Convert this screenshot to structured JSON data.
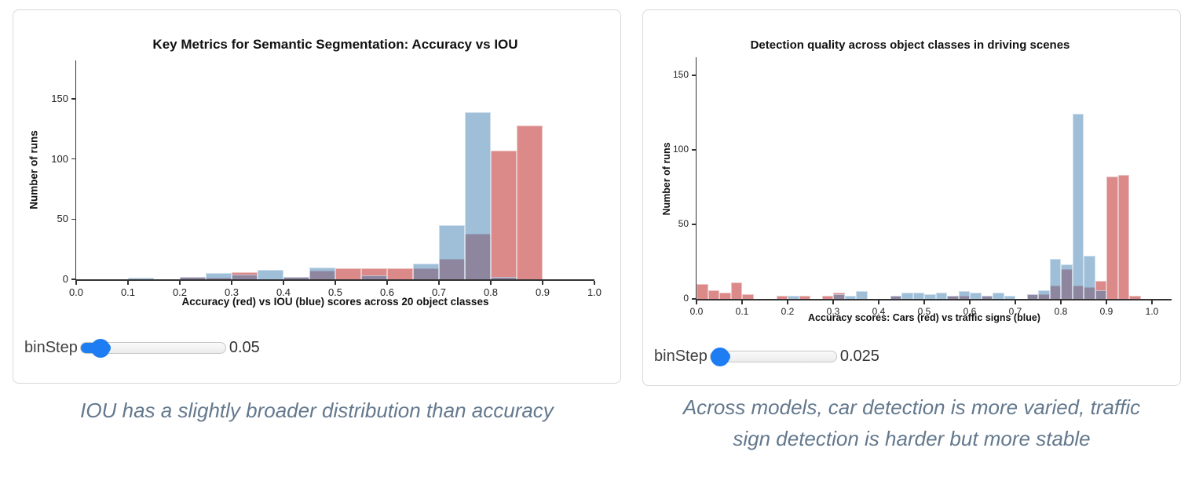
{
  "colors": {
    "red_bar": "rgba(205,92,92,0.72)",
    "blue_bar": "rgba(70,130,180,0.52)",
    "axis": "#333333",
    "tick_text": "#222222",
    "title_text": "#111111",
    "caption_text": "#63788d",
    "slider_accent": "#1e7df2",
    "panel_border": "#d8d8d8"
  },
  "chart_data": [
    {
      "type": "histogram",
      "title": "Key Metrics for Semantic Segmentation: Accuracy vs IOU",
      "xlabel": "Accuracy (red) vs IOU (blue) scores across 20 object classes",
      "ylabel": "Number of runs",
      "xticks": [
        "0.0",
        "0.1",
        "0.2",
        "0.3",
        "0.4",
        "0.5",
        "0.6",
        "0.7",
        "0.8",
        "0.9",
        "1.0"
      ],
      "yticks": [
        0,
        50,
        100,
        150
      ],
      "xlim": [
        0,
        1.0
      ],
      "ylim": [
        0,
        182
      ],
      "bin_step": 0.05,
      "grid": false,
      "series": [
        {
          "name": "Accuracy (red)",
          "color_key": "red_bar",
          "bins": [
            [
              0.2,
              2
            ],
            [
              0.25,
              1
            ],
            [
              0.3,
              6
            ],
            [
              0.4,
              2
            ],
            [
              0.45,
              7
            ],
            [
              0.5,
              9
            ],
            [
              0.55,
              9
            ],
            [
              0.6,
              9
            ],
            [
              0.65,
              9
            ],
            [
              0.7,
              17
            ],
            [
              0.75,
              38
            ],
            [
              0.8,
              107
            ],
            [
              0.85,
              128
            ]
          ]
        },
        {
          "name": "IOU (blue)",
          "color_key": "blue_bar",
          "bins": [
            [
              0.1,
              1
            ],
            [
              0.2,
              2
            ],
            [
              0.25,
              5
            ],
            [
              0.3,
              4
            ],
            [
              0.35,
              8
            ],
            [
              0.4,
              2
            ],
            [
              0.45,
              10
            ],
            [
              0.55,
              3
            ],
            [
              0.65,
              13
            ],
            [
              0.7,
              45
            ],
            [
              0.75,
              139
            ],
            [
              0.8,
              2
            ]
          ]
        }
      ],
      "slider": {
        "label": "binStep",
        "value": "0.05",
        "fraction": 0.13
      },
      "caption": "IOU has a slightly broader distribution than accuracy"
    },
    {
      "type": "histogram",
      "title": "Detection quality across object classes in driving scenes",
      "xlabel": "Accuracy scores: Cars (red) vs traffic signs (blue)",
      "ylabel": "Number of runs",
      "xticks": [
        "0.0",
        "0.1",
        "0.2",
        "0.3",
        "0.4",
        "0.5",
        "0.6",
        "0.7",
        "0.8",
        "0.9",
        "1.0"
      ],
      "yticks": [
        0,
        50,
        100,
        150
      ],
      "xlim": [
        0,
        1.0
      ],
      "ylim": [
        0,
        162
      ],
      "bin_step": 0.025,
      "grid": false,
      "series": [
        {
          "name": "Cars (red)",
          "color_key": "red_bar",
          "bins": [
            [
              0.0,
              10
            ],
            [
              0.025,
              6
            ],
            [
              0.05,
              4
            ],
            [
              0.075,
              11
            ],
            [
              0.1,
              3
            ],
            [
              0.175,
              2
            ],
            [
              0.225,
              2
            ],
            [
              0.275,
              2
            ],
            [
              0.3,
              4
            ],
            [
              0.425,
              2
            ],
            [
              0.55,
              2
            ],
            [
              0.575,
              2
            ],
            [
              0.625,
              2
            ],
            [
              0.725,
              3
            ],
            [
              0.75,
              3
            ],
            [
              0.775,
              9
            ],
            [
              0.8,
              20
            ],
            [
              0.825,
              9
            ],
            [
              0.85,
              8
            ],
            [
              0.875,
              12
            ],
            [
              0.9,
              82
            ],
            [
              0.925,
              83
            ],
            [
              0.95,
              2
            ]
          ]
        },
        {
          "name": "Traffic signs (blue)",
          "color_key": "blue_bar",
          "bins": [
            [
              0.2,
              2
            ],
            [
              0.3,
              3
            ],
            [
              0.325,
              2
            ],
            [
              0.35,
              5
            ],
            [
              0.425,
              2
            ],
            [
              0.45,
              4
            ],
            [
              0.475,
              4
            ],
            [
              0.5,
              3
            ],
            [
              0.525,
              4
            ],
            [
              0.55,
              2
            ],
            [
              0.575,
              5
            ],
            [
              0.6,
              4
            ],
            [
              0.625,
              2
            ],
            [
              0.65,
              4
            ],
            [
              0.675,
              2
            ],
            [
              0.725,
              3
            ],
            [
              0.75,
              6
            ],
            [
              0.775,
              27
            ],
            [
              0.8,
              23
            ],
            [
              0.825,
              124
            ],
            [
              0.85,
              29
            ],
            [
              0.875,
              6
            ]
          ]
        }
      ],
      "slider": {
        "label": "binStep",
        "value": "0.025",
        "fraction": 0.07
      },
      "caption": "Across models, car detection is more varied, traffic sign detection is harder but more stable"
    }
  ]
}
